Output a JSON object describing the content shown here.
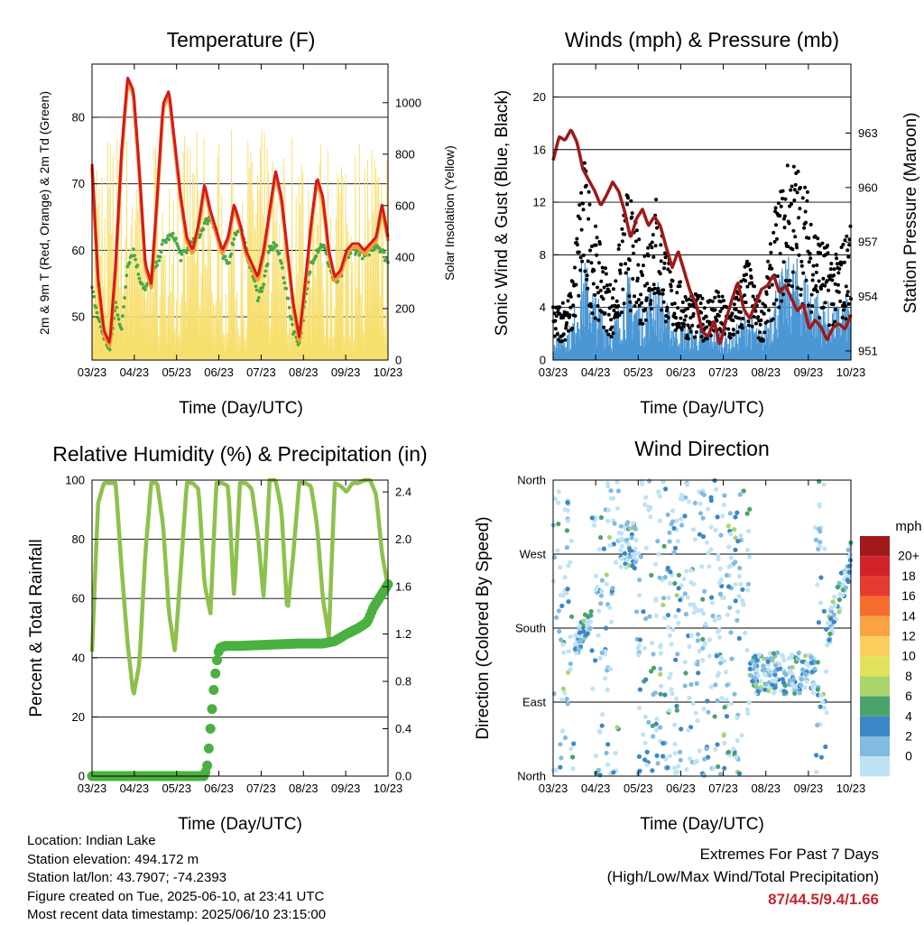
{
  "x_ticks": [
    "03/23",
    "04/23",
    "05/23",
    "06/23",
    "07/23",
    "08/23",
    "09/23",
    "10/23"
  ],
  "chart_data": [
    {
      "type": "line",
      "title": "Temperature (F)",
      "xlabel": "Time (Day/UTC)",
      "ylabel": "2m & 9m T (Red, Orange) & 2m Td (Green)",
      "ylabel_right": "Solar Insolation (Yellow)",
      "ylim": [
        43.5,
        88
      ],
      "yticks": [
        50,
        60,
        70,
        80
      ],
      "ylim_right": [
        0,
        1150
      ],
      "yticks_right": [
        0,
        200,
        400,
        600,
        800,
        1000
      ],
      "grid": true,
      "colors": {
        "t2m": "#d7191c",
        "t9m": "#f39c34",
        "td": "#4aa846",
        "solar": "#f7df6e"
      },
      "series": [
        {
          "key": "t2m",
          "x": [
            0,
            0.02,
            0.04,
            0.06,
            0.08,
            0.1,
            0.12,
            0.14,
            0.16,
            0.18,
            0.2,
            0.22,
            0.24,
            0.26,
            0.28,
            0.3,
            0.32,
            0.34,
            0.36,
            0.38,
            0.4,
            0.42,
            0.44,
            0.46,
            0.48,
            0.5,
            0.52,
            0.54,
            0.56,
            0.58,
            0.6,
            0.62,
            0.64,
            0.66,
            0.68,
            0.7,
            0.72,
            0.74,
            0.76,
            0.78,
            0.8,
            0.82,
            0.84,
            0.86,
            0.88,
            0.9,
            0.92,
            0.94,
            0.96,
            0.98,
            1
          ],
          "y": [
            73,
            56,
            48,
            46,
            58,
            75,
            86,
            84,
            72,
            58,
            55,
            68,
            82,
            84,
            76,
            68,
            62,
            60,
            64,
            70,
            66,
            63,
            60,
            62,
            67,
            64,
            60,
            58,
            56,
            60,
            66,
            72,
            68,
            60,
            52,
            47,
            55,
            64,
            71,
            68,
            60,
            56,
            57,
            60,
            61,
            61,
            60,
            61,
            62,
            67,
            62
          ]
        },
        {
          "key": "td",
          "x": [
            0,
            0.02,
            0.04,
            0.06,
            0.08,
            0.1,
            0.12,
            0.14,
            0.16,
            0.18,
            0.2,
            0.22,
            0.24,
            0.26,
            0.28,
            0.3,
            0.32,
            0.34,
            0.36,
            0.38,
            0.4,
            0.42,
            0.44,
            0.46,
            0.48,
            0.5,
            0.52,
            0.54,
            0.56,
            0.58,
            0.6,
            0.62,
            0.64,
            0.66,
            0.68,
            0.7,
            0.72,
            0.74,
            0.76,
            0.78,
            0.8,
            0.82,
            0.84,
            0.86,
            0.88,
            0.9,
            0.92,
            0.94,
            0.96,
            0.98,
            1
          ],
          "y": [
            54,
            50,
            47,
            45,
            52,
            48,
            58,
            60,
            56,
            54,
            56,
            58,
            61,
            62,
            62,
            59,
            60,
            61,
            62,
            64,
            65,
            63,
            59,
            58,
            62,
            64,
            60,
            57,
            53,
            55,
            60,
            61,
            58,
            53,
            48,
            46,
            52,
            58,
            60,
            61,
            58,
            55,
            56,
            59,
            60,
            60,
            59,
            60,
            61,
            60,
            58
          ]
        }
      ]
    },
    {
      "type": "line",
      "title": "Winds (mph) & Pressure (mb)",
      "xlabel": "Time (Day/UTC)",
      "ylabel": "Sonic Wind & Gust (Blue, Black)",
      "ylabel_right": "Station Pressure (Maroon)",
      "ylim": [
        0,
        22.5
      ],
      "yticks": [
        0,
        4,
        8,
        12,
        16,
        20
      ],
      "ylim_right": [
        950.5,
        966.8
      ],
      "yticks_right": [
        951,
        954,
        957,
        960,
        963
      ],
      "grid": true,
      "colors": {
        "wind": "#4b97d4",
        "gust": "#000000",
        "pressure": "#9e1a1a"
      },
      "series": [
        {
          "key": "pressure",
          "x": [
            0,
            0.02,
            0.04,
            0.06,
            0.08,
            0.1,
            0.12,
            0.14,
            0.16,
            0.18,
            0.2,
            0.22,
            0.24,
            0.26,
            0.28,
            0.3,
            0.32,
            0.34,
            0.36,
            0.38,
            0.4,
            0.42,
            0.44,
            0.46,
            0.48,
            0.5,
            0.52,
            0.54,
            0.56,
            0.58,
            0.6,
            0.62,
            0.64,
            0.66,
            0.68,
            0.7,
            0.72,
            0.74,
            0.76,
            0.78,
            0.8,
            0.82,
            0.84,
            0.86,
            0.88,
            0.9,
            0.92,
            0.94,
            0.96,
            0.98,
            1
          ],
          "y": [
            961.5,
            962.8,
            962.6,
            963.2,
            962.5,
            961,
            960.4,
            959.8,
            959,
            959.6,
            960.3,
            959.8,
            958.7,
            957.2,
            958.3,
            958.8,
            957.9,
            958.4,
            957.9,
            956.7,
            955.6,
            956.5,
            955.4,
            954.3,
            953.6,
            952.1,
            951.8,
            952.7,
            951.3,
            952.7,
            953.8,
            954.8,
            953.3,
            952.8,
            953.6,
            954.4,
            954.6,
            955.2,
            954.2,
            954.6,
            953.9,
            953.2,
            953.6,
            952.2,
            952.7,
            952.3,
            951.6,
            952.3,
            952.5,
            952.2,
            953
          ]
        }
      ]
    },
    {
      "type": "line",
      "title": "Relative Humidity (%) & Precipitation (in)",
      "xlabel": "Time (Day/UTC)",
      "ylabel": "Percent & Total Rainfall",
      "ylim": [
        0,
        100
      ],
      "yticks": [
        0,
        20,
        40,
        60,
        80,
        100
      ],
      "ylim_right": [
        0,
        2.5
      ],
      "yticks_right": [
        "0.0",
        "0.4",
        "0.8",
        "1.2",
        "1.6",
        "2.0",
        "2.4"
      ],
      "grid": true,
      "colors": {
        "rh": "#8ec04d",
        "precip": "#4ab140"
      },
      "series": [
        {
          "key": "rh",
          "x": [
            0,
            0.02,
            0.04,
            0.06,
            0.08,
            0.1,
            0.12,
            0.14,
            0.16,
            0.18,
            0.2,
            0.22,
            0.24,
            0.26,
            0.28,
            0.3,
            0.32,
            0.34,
            0.36,
            0.38,
            0.4,
            0.42,
            0.44,
            0.46,
            0.48,
            0.5,
            0.52,
            0.54,
            0.56,
            0.58,
            0.6,
            0.62,
            0.64,
            0.66,
            0.68,
            0.7,
            0.72,
            0.74,
            0.76,
            0.78,
            0.8,
            0.82,
            0.84,
            0.86,
            0.88,
            0.9,
            0.92,
            0.94,
            0.96,
            0.98,
            1
          ],
          "y": [
            42,
            92,
            99,
            99,
            99,
            70,
            45,
            27,
            38,
            75,
            99,
            99,
            85,
            55,
            42,
            70,
            99,
            99,
            97,
            65,
            55,
            99,
            99,
            98,
            60,
            99,
            99,
            97,
            82,
            60,
            100,
            100,
            90,
            55,
            75,
            99,
            99,
            98,
            85,
            60,
            47,
            99,
            98,
            96,
            99,
            99,
            100,
            100,
            95,
            75,
            64
          ]
        },
        {
          "key": "precip",
          "x": [
            0,
            0.1,
            0.2,
            0.3,
            0.38,
            0.39,
            0.4,
            0.41,
            0.42,
            0.43,
            0.45,
            0.5,
            0.6,
            0.7,
            0.78,
            0.82,
            0.86,
            0.9,
            0.93,
            0.95,
            0.97,
            1
          ],
          "y": [
            0,
            0,
            0,
            0,
            0,
            0.1,
            0.4,
            0.7,
            0.95,
            1.08,
            1.1,
            1.1,
            1.11,
            1.12,
            1.12,
            1.14,
            1.2,
            1.25,
            1.3,
            1.42,
            1.5,
            1.62
          ]
        }
      ]
    },
    {
      "type": "scatter",
      "title": "Wind Direction",
      "xlabel": "Time (Day/UTC)",
      "ylabel": "Direction (Colored By Speed)",
      "yticks": [
        "North",
        "East",
        "South",
        "West",
        "North"
      ],
      "grid": true,
      "legend": {
        "title": "mph",
        "labels": [
          "20+",
          "18",
          "16",
          "14",
          "12",
          "10",
          "8",
          "6",
          "4",
          "2",
          "0"
        ],
        "colors": [
          "#a01a1b",
          "#d2232a",
          "#e53b2f",
          "#f46d2f",
          "#f9a344",
          "#fbcf5e",
          "#e2e25a",
          "#a9d46c",
          "#4ba36a",
          "#3b87c8",
          "#81bbe3",
          "#bfe3f4"
        ]
      }
    }
  ],
  "info": {
    "location": "Location: Indian Lake",
    "elevation": "Station elevation: 494.172 m",
    "latlon": "Station lat/lon: 43.7907; -74.2393",
    "created": "Figure created on Tue, 2025-06-10, at 23:41 UTC",
    "recent": "Most recent data timestamp: 2025/06/10 23:15:00"
  },
  "extremes": {
    "title": "Extremes For Past 7 Days",
    "subtitle": "(High/Low/Max Wind/Total Precipitation)",
    "values": "87/44.5/9.4/1.66"
  }
}
